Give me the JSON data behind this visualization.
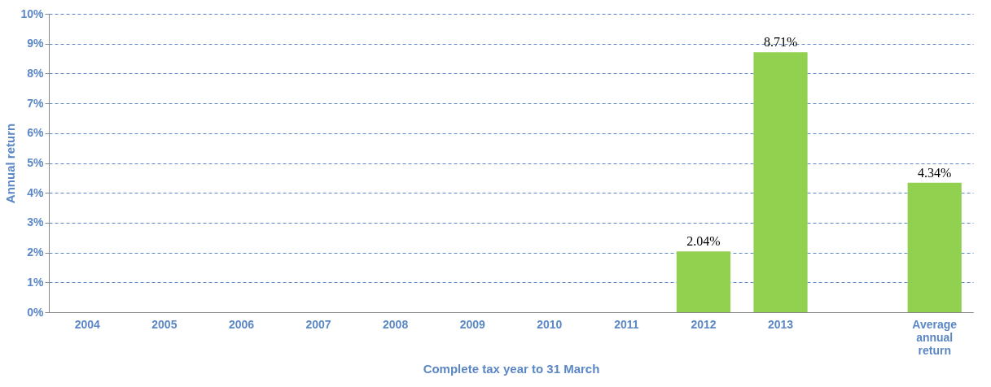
{
  "chart_data": {
    "type": "bar",
    "xlabel": "Complete tax year to 31 March",
    "ylabel": "Annual return",
    "categories": [
      "2004",
      "2005",
      "2006",
      "2007",
      "2008",
      "2009",
      "2010",
      "2011",
      "2012",
      "2013",
      null,
      "Average annual return"
    ],
    "values": [
      null,
      null,
      null,
      null,
      null,
      null,
      null,
      null,
      2.04,
      8.71,
      null,
      4.34
    ],
    "value_labels": [
      null,
      null,
      null,
      null,
      null,
      null,
      null,
      null,
      "2.04%",
      "8.71%",
      null,
      "4.34%"
    ],
    "color": "#92d050",
    "ylim": [
      0,
      10
    ],
    "yticks": [
      {
        "value": 0,
        "label": "0%"
      },
      {
        "value": 1,
        "label": "1%"
      },
      {
        "value": 2,
        "label": "2%"
      },
      {
        "value": 3,
        "label": "3%"
      },
      {
        "value": 4,
        "label": "4%"
      },
      {
        "value": 5,
        "label": "5%"
      },
      {
        "value": 6,
        "label": "6%"
      },
      {
        "value": 7,
        "label": "7%"
      },
      {
        "value": 8,
        "label": "8%"
      },
      {
        "value": 9,
        "label": "9%"
      },
      {
        "value": 10,
        "label": "10%"
      }
    ],
    "grid": "y",
    "line_style": "dashed"
  }
}
